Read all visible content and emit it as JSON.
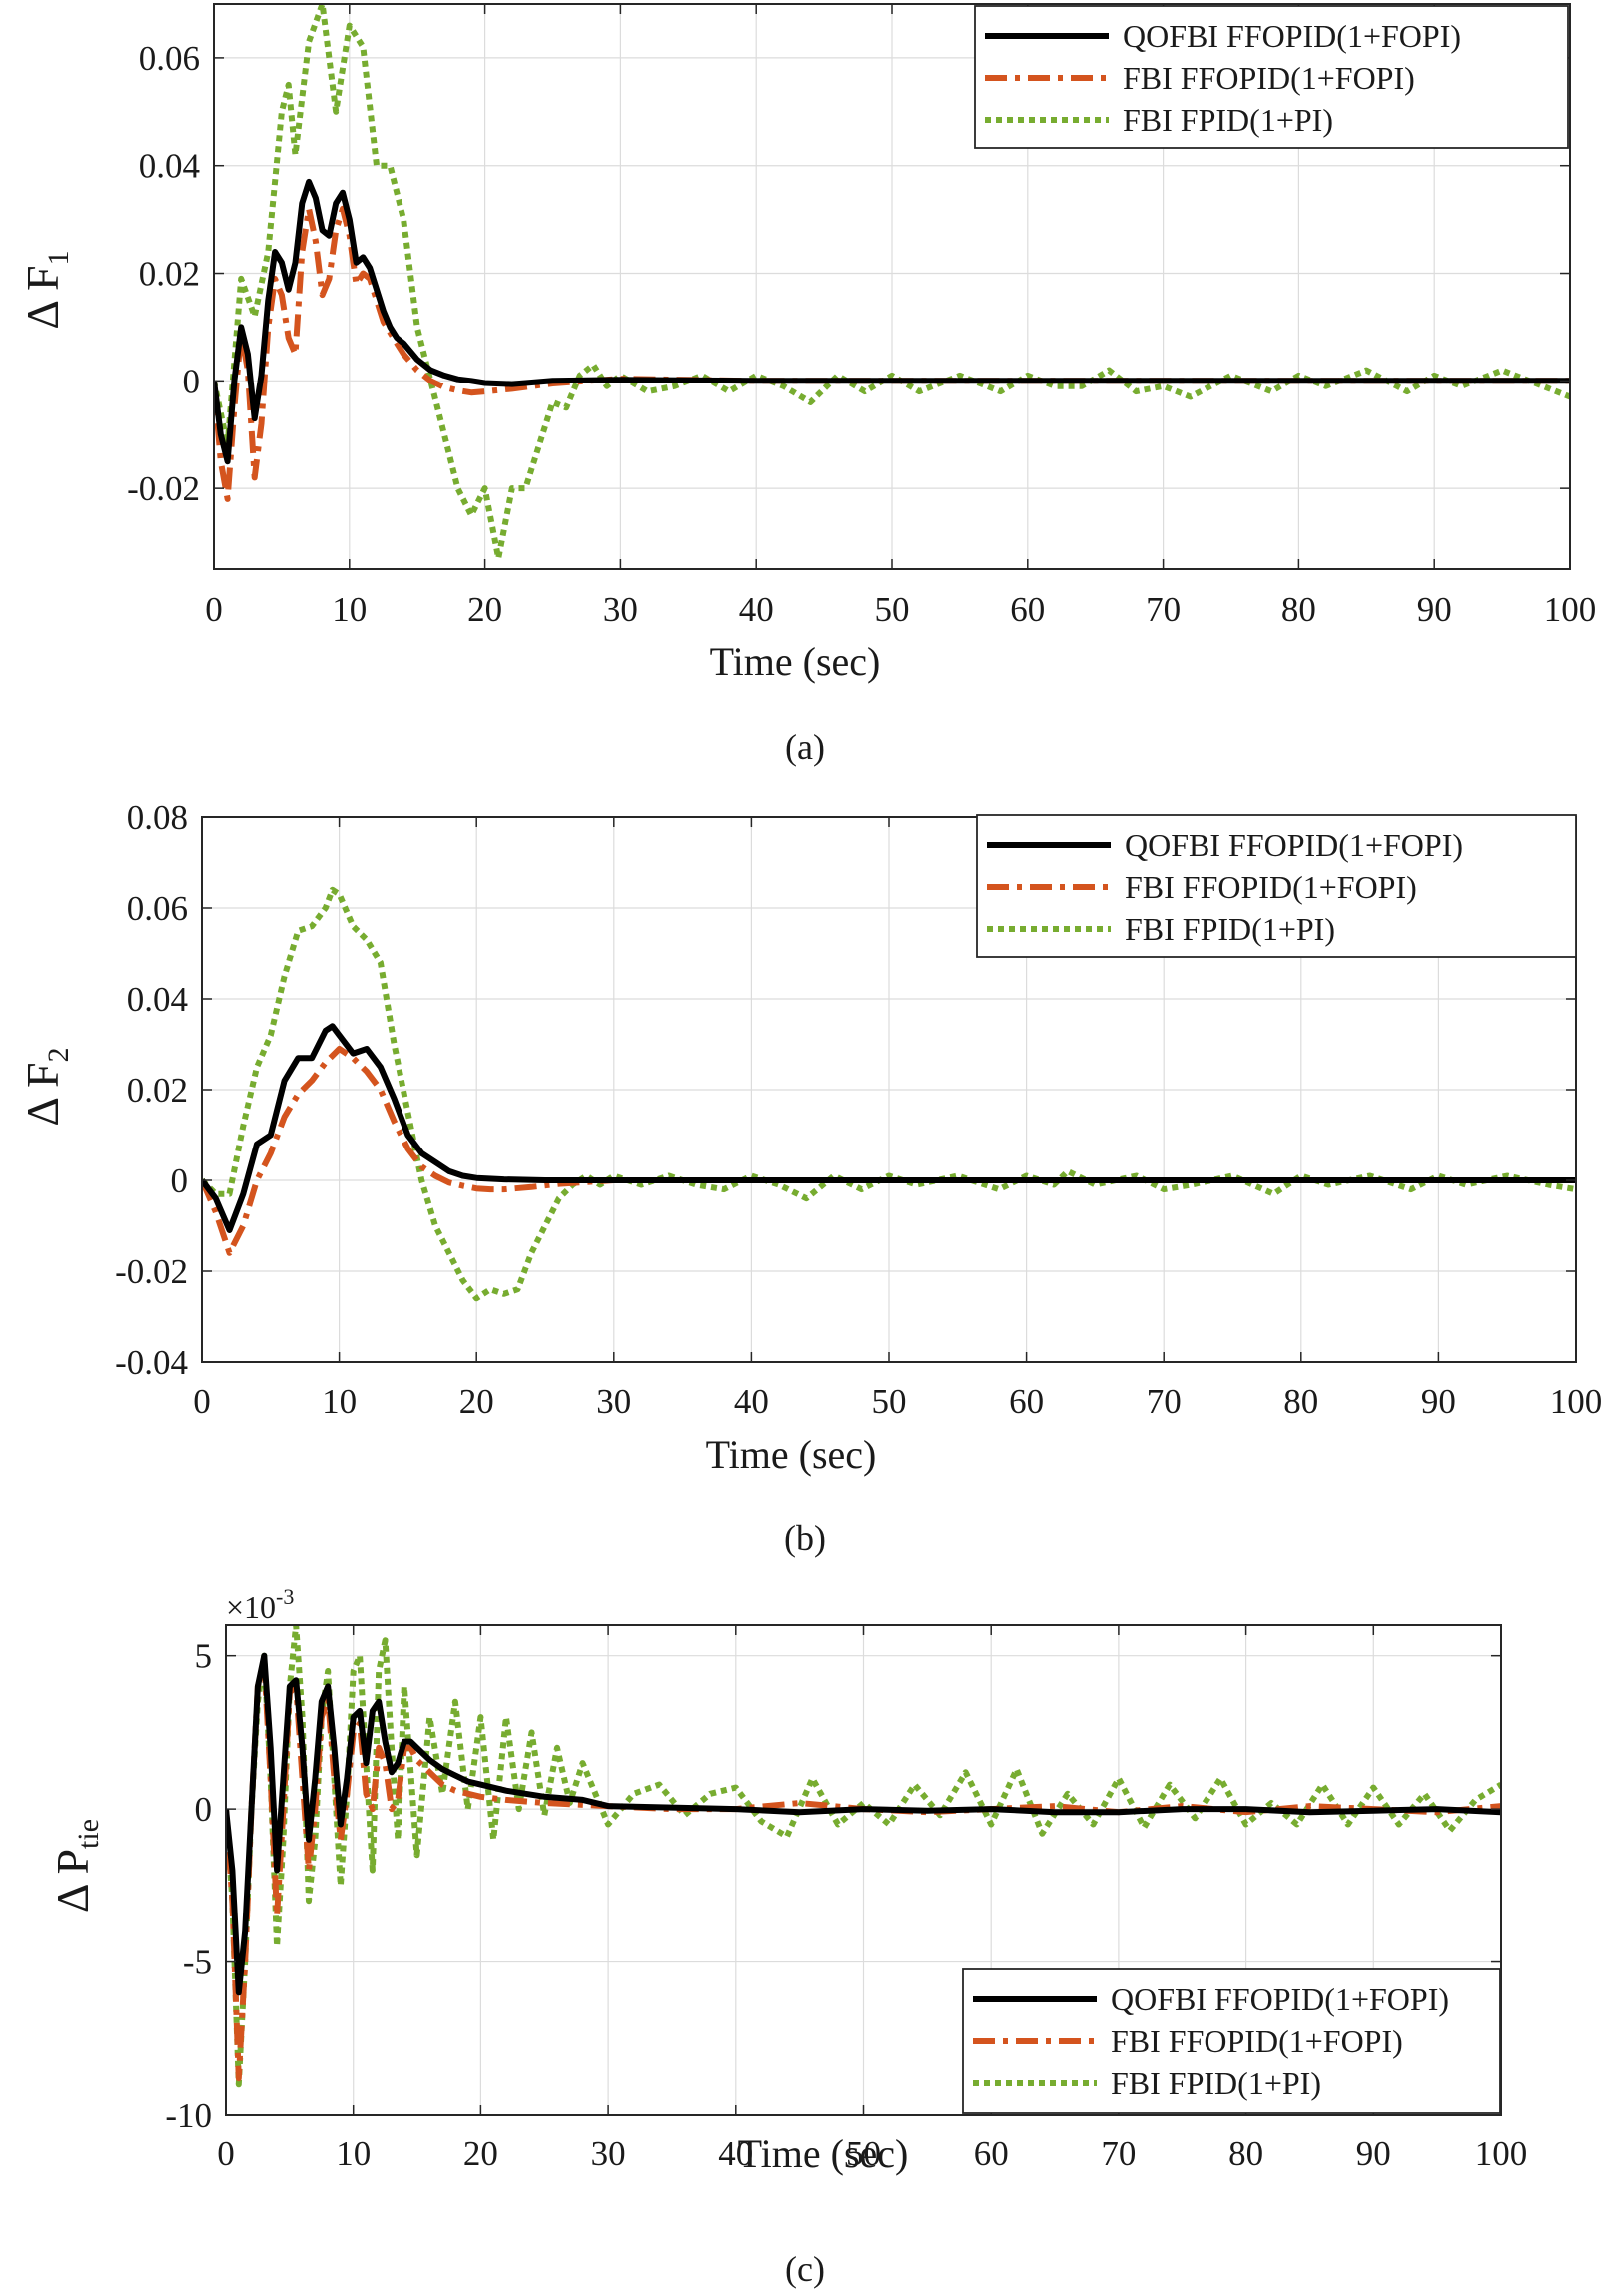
{
  "figure_panels": [
    "a",
    "b",
    "c"
  ],
  "colors": {
    "series1": "#000000",
    "series2": "#D4541E",
    "series3": "#77AC30",
    "grid": "#dcdcdc",
    "axis": "#262626"
  },
  "chart_data": [
    {
      "type": "line",
      "panel": "a",
      "caption": "(a)",
      "ylabel_main": "Δ F",
      "ylabel_sub": "1",
      "xlabel": "Time (sec)",
      "xlim": [
        0,
        100
      ],
      "ylim": [
        -0.035,
        0.07
      ],
      "xticks": [
        0,
        10,
        20,
        30,
        40,
        50,
        60,
        70,
        80,
        90,
        100
      ],
      "yticks": [
        -0.02,
        0,
        0.02,
        0.04,
        0.06
      ],
      "ytick_labels": [
        "-0.02",
        "0",
        "0.02",
        "0.04",
        "0.06"
      ],
      "grid": true,
      "legend_position": "top-right",
      "series": [
        {
          "name": "QOFBI FFOPID(1+FOPI)",
          "style": "solid",
          "x": [
            0,
            0.5,
            1,
            1.5,
            2,
            2.5,
            3,
            3.5,
            4,
            4.5,
            5,
            5.5,
            6,
            6.5,
            7,
            7.5,
            8,
            8.5,
            9,
            9.5,
            10,
            10.5,
            11,
            11.5,
            12,
            12.5,
            13,
            13.5,
            14,
            14.5,
            15,
            16,
            17,
            18,
            19,
            20,
            22,
            25,
            30,
            40,
            50,
            60,
            70,
            80,
            90,
            100
          ],
          "y": [
            0,
            -0.01,
            -0.015,
            0,
            0.01,
            0.005,
            -0.007,
            0.001,
            0.015,
            0.024,
            0.022,
            0.017,
            0.022,
            0.033,
            0.037,
            0.034,
            0.028,
            0.027,
            0.033,
            0.035,
            0.03,
            0.022,
            0.023,
            0.021,
            0.017,
            0.013,
            0.01,
            0.008,
            0.007,
            0.0055,
            0.004,
            0.002,
            0.001,
            0.0003,
            0,
            -0.0004,
            -0.0006,
            0,
            0.0002,
            0,
            0,
            0,
            0,
            0,
            0,
            0
          ]
        },
        {
          "name": "FBI FFOPID(1+FOPI)",
          "style": "dashdot",
          "x": [
            0,
            0.5,
            1,
            1.5,
            2,
            2.5,
            3,
            3.5,
            4,
            4.5,
            5,
            5.5,
            6,
            6.5,
            7,
            7.5,
            8,
            8.5,
            9,
            9.5,
            10,
            10.5,
            11,
            11.5,
            12,
            12.5,
            13,
            13.5,
            14,
            14.5,
            15,
            16,
            17,
            18,
            19,
            20,
            22,
            25,
            30,
            40,
            50,
            60,
            70,
            80,
            90,
            100
          ],
          "y": [
            0,
            -0.015,
            -0.022,
            -0.005,
            0.009,
            0.002,
            -0.018,
            -0.008,
            0.01,
            0.019,
            0.016,
            0.008,
            0.005,
            0.024,
            0.032,
            0.026,
            0.016,
            0.019,
            0.028,
            0.032,
            0.027,
            0.018,
            0.02,
            0.019,
            0.015,
            0.011,
            0.009,
            0.007,
            0.005,
            0.0035,
            0.002,
            0,
            -0.0012,
            -0.0018,
            -0.0022,
            -0.002,
            -0.0015,
            -0.0005,
            0.0004,
            0,
            0,
            0,
            0,
            0,
            0,
            0
          ]
        },
        {
          "name": "FBI FPID(1+PI)",
          "style": "dotted",
          "x": [
            0,
            1,
            2,
            3,
            4,
            5,
            5.5,
            6,
            7,
            8,
            9,
            10,
            10.5,
            11,
            12,
            13,
            14,
            15,
            16,
            17,
            18,
            19,
            20,
            21,
            22,
            23,
            24,
            25,
            26,
            27,
            28,
            29,
            30,
            32,
            34,
            36,
            38,
            40,
            42,
            44,
            46,
            48,
            50,
            52,
            55,
            58,
            60,
            62,
            64,
            66,
            68,
            70,
            72,
            75,
            78,
            80,
            82,
            85,
            88,
            90,
            92,
            95,
            98,
            100
          ],
          "y": [
            0,
            -0.012,
            0.019,
            0.012,
            0.024,
            0.05,
            0.055,
            0.042,
            0.063,
            0.07,
            0.05,
            0.066,
            0.064,
            0.062,
            0.04,
            0.04,
            0.03,
            0.01,
            0,
            -0.01,
            -0.02,
            -0.025,
            -0.02,
            -0.033,
            -0.02,
            -0.02,
            -0.012,
            -0.004,
            -0.005,
            0.001,
            0.003,
            -0.001,
            0.001,
            -0.002,
            -0.001,
            0.001,
            -0.002,
            0.001,
            -0.001,
            -0.004,
            0.001,
            -0.002,
            0.001,
            -0.002,
            0.001,
            -0.002,
            0.001,
            -0.001,
            -0.001,
            0.002,
            -0.002,
            -0.001,
            -0.003,
            0.001,
            -0.002,
            0.001,
            -0.001,
            0.002,
            -0.002,
            0.001,
            -0.001,
            0.002,
            -0.001,
            -0.003
          ]
        }
      ]
    },
    {
      "type": "line",
      "panel": "b",
      "caption": "(b)",
      "ylabel_main": "Δ F",
      "ylabel_sub": "2",
      "xlabel": "Time (sec)",
      "xlim": [
        0,
        100
      ],
      "ylim": [
        -0.04,
        0.08
      ],
      "xticks": [
        0,
        10,
        20,
        30,
        40,
        50,
        60,
        70,
        80,
        90,
        100
      ],
      "yticks": [
        -0.04,
        -0.02,
        0,
        0.02,
        0.04,
        0.06,
        0.08
      ],
      "ytick_labels": [
        "-0.04",
        "-0.02",
        "0",
        "0.02",
        "0.04",
        "0.06",
        "0.08"
      ],
      "grid": true,
      "legend_position": "top-right",
      "series": [
        {
          "name": "QOFBI FFOPID(1+FOPI)",
          "style": "solid",
          "x": [
            0,
            1,
            2,
            3,
            4,
            5,
            6,
            7,
            8,
            9,
            9.5,
            10,
            11,
            12,
            13,
            14,
            15,
            16,
            17,
            18,
            19,
            20,
            22,
            25,
            30,
            40,
            50,
            60,
            70,
            80,
            90,
            100
          ],
          "y": [
            0,
            -0.004,
            -0.011,
            -0.003,
            0.008,
            0.01,
            0.022,
            0.027,
            0.027,
            0.033,
            0.034,
            0.032,
            0.028,
            0.029,
            0.025,
            0.018,
            0.01,
            0.006,
            0.004,
            0.002,
            0.001,
            0.0005,
            0.0002,
            0,
            0,
            0,
            0,
            0,
            0,
            0,
            0,
            0
          ]
        },
        {
          "name": "FBI FFOPID(1+FOPI)",
          "style": "dashdot",
          "x": [
            0,
            1,
            2,
            3,
            4,
            5,
            6,
            7,
            8,
            9,
            10,
            11,
            12,
            13,
            14,
            15,
            16,
            17,
            18,
            19,
            20,
            21,
            22,
            24,
            26,
            30,
            40,
            50,
            60,
            70,
            80,
            90,
            100
          ],
          "y": [
            0,
            -0.007,
            -0.016,
            -0.01,
            0,
            0.006,
            0.014,
            0.019,
            0.022,
            0.026,
            0.029,
            0.027,
            0.024,
            0.02,
            0.013,
            0.007,
            0.003,
            0.001,
            -0.0005,
            -0.0012,
            -0.0018,
            -0.002,
            -0.002,
            -0.0015,
            -0.0008,
            0,
            0,
            0,
            0,
            0,
            0,
            0,
            0
          ]
        },
        {
          "name": "FBI FPID(1+PI)",
          "style": "dotted",
          "x": [
            0,
            1,
            2,
            3,
            4,
            5,
            6,
            7,
            8,
            9,
            9.5,
            10,
            11,
            12,
            13,
            14,
            15,
            16,
            17,
            18,
            19,
            20,
            21,
            22,
            23,
            24,
            25,
            26,
            27,
            28,
            29,
            30,
            32,
            34,
            36,
            38,
            40,
            42,
            44,
            46,
            48,
            50,
            52,
            55,
            58,
            60,
            62,
            63,
            65,
            68,
            70,
            72,
            75,
            78,
            80,
            82,
            85,
            88,
            90,
            92,
            95,
            98,
            100
          ],
          "y": [
            0,
            -0.003,
            -0.003,
            0.012,
            0.025,
            0.032,
            0.045,
            0.055,
            0.056,
            0.06,
            0.064,
            0.063,
            0.056,
            0.053,
            0.048,
            0.03,
            0.015,
            0,
            -0.01,
            -0.016,
            -0.022,
            -0.026,
            -0.024,
            -0.025,
            -0.024,
            -0.016,
            -0.01,
            -0.004,
            -0.001,
            0.001,
            -0.001,
            0.001,
            -0.001,
            0.001,
            -0.001,
            -0.002,
            0.001,
            -0.001,
            -0.004,
            0.001,
            -0.002,
            0.001,
            -0.001,
            0.001,
            -0.002,
            0.001,
            -0.001,
            0.002,
            -0.001,
            0.001,
            -0.002,
            -0.001,
            0.001,
            -0.003,
            0.001,
            -0.001,
            0.001,
            -0.002,
            0.001,
            -0.001,
            0.001,
            -0.001,
            -0.002
          ]
        }
      ]
    },
    {
      "type": "line",
      "panel": "c",
      "caption": "(c)",
      "ylabel_main": "Δ P",
      "ylabel_sub": "tie",
      "xlabel": "Time (sec)",
      "multiplier_base": "×10",
      "multiplier_exp": "-3",
      "xlim": [
        0,
        100
      ],
      "ylim": [
        -10,
        6
      ],
      "xticks": [
        0,
        10,
        20,
        30,
        40,
        50,
        60,
        70,
        80,
        90,
        100
      ],
      "yticks": [
        -10,
        -5,
        0,
        5
      ],
      "ytick_labels": [
        "-10",
        "-5",
        "0",
        "5"
      ],
      "grid": true,
      "legend_position": "bottom-right",
      "series": [
        {
          "name": "QOFBI FFOPID(1+FOPI)",
          "style": "solid",
          "x": [
            0,
            0.5,
            1,
            1.5,
            2,
            2.5,
            3,
            3.5,
            4,
            4.5,
            5,
            5.5,
            6,
            6.5,
            7,
            7.5,
            8,
            8.5,
            9,
            9.5,
            10,
            10.5,
            11,
            11.5,
            12,
            12.5,
            13,
            13.5,
            14,
            14.5,
            15,
            16,
            17,
            18,
            19,
            20,
            22,
            25,
            28,
            30,
            35,
            40,
            45,
            50,
            55,
            60,
            65,
            70,
            75,
            80,
            85,
            90,
            95,
            100
          ],
          "y": [
            0,
            -2,
            -6,
            -4,
            0,
            4,
            5,
            2,
            -2,
            1,
            4,
            4.2,
            2,
            -1,
            1,
            3.5,
            4,
            2,
            -0.5,
            1,
            3,
            3.2,
            1.5,
            3.2,
            3.5,
            2.2,
            1.2,
            1.5,
            2.2,
            2.2,
            2,
            1.6,
            1.3,
            1.1,
            0.9,
            0.8,
            0.6,
            0.4,
            0.3,
            0.1,
            0.05,
            0,
            -0.1,
            0,
            -0.05,
            0,
            -0.1,
            -0.1,
            0,
            0,
            -0.1,
            -0.05,
            0,
            -0.1
          ]
        },
        {
          "name": "FBI FFOPID(1+FOPI)",
          "style": "dashdot",
          "x": [
            0,
            0.5,
            1,
            1.5,
            2,
            2.5,
            3,
            3.5,
            4,
            4.5,
            5,
            5.5,
            6,
            6.5,
            7,
            7.5,
            8,
            8.5,
            9,
            9.5,
            10,
            10.5,
            11,
            11.5,
            12,
            12.5,
            13,
            13.5,
            14,
            14.5,
            15,
            16,
            17,
            18,
            20,
            22,
            25,
            30,
            35,
            40,
            45,
            50,
            55,
            60,
            65,
            70,
            75,
            80,
            85,
            90,
            95,
            100
          ],
          "y": [
            0,
            -3,
            -8.8,
            -5,
            0,
            4,
            4.8,
            1,
            -3.5,
            0,
            3.8,
            4,
            1,
            -2,
            0,
            3,
            3.6,
            1,
            -1,
            0.5,
            2.5,
            2.8,
            0.5,
            0,
            2,
            1.5,
            0,
            0.3,
            2,
            2,
            1.6,
            1.2,
            0.8,
            0.6,
            0.4,
            0.3,
            0.2,
            0.1,
            0,
            0,
            0.2,
            0,
            -0.1,
            0,
            0.1,
            -0.1,
            0.1,
            -0.1,
            0.1,
            0,
            -0.1,
            0.1
          ]
        },
        {
          "name": "FBI FPID(1+PI)",
          "style": "dotted",
          "x": [
            0,
            0.5,
            1,
            1.5,
            2,
            2.5,
            3,
            3.5,
            4,
            4.5,
            5,
            5.5,
            6,
            6.5,
            7,
            7.5,
            8,
            8.5,
            9,
            9.5,
            10,
            10.5,
            11,
            11.5,
            12,
            12.5,
            13,
            13.5,
            14,
            15,
            16,
            17,
            18,
            19,
            20,
            21,
            22,
            23,
            24,
            25,
            26,
            27,
            28,
            30,
            32,
            34,
            36,
            38,
            40,
            42,
            44,
            46,
            48,
            50,
            52,
            54,
            56,
            58,
            60,
            62,
            64,
            66,
            68,
            70,
            72,
            74,
            76,
            78,
            80,
            82,
            84,
            86,
            88,
            90,
            92,
            94,
            96,
            98,
            100
          ],
          "y": [
            0,
            -3,
            -9,
            -5,
            0,
            3.5,
            5,
            1,
            -4.5,
            -1,
            4,
            6,
            3,
            -3,
            -1,
            3,
            4.5,
            1,
            -2.5,
            0.5,
            4.5,
            5,
            1.5,
            -2,
            4.5,
            5.5,
            2,
            -1,
            4,
            -1.5,
            3,
            0.5,
            3.5,
            0,
            3,
            -1,
            3,
            0,
            2.5,
            -0.2,
            2,
            0.2,
            1.5,
            -0.5,
            0.5,
            0.8,
            -0.2,
            0.5,
            0.7,
            -0.4,
            -0.9,
            1,
            -0.5,
            0.2,
            -0.5,
            0.8,
            -0.2,
            1.2,
            -0.5,
            1.3,
            -0.8,
            0.5,
            -0.5,
            1,
            -0.6,
            0.8,
            -0.3,
            1,
            -0.5,
            0.2,
            -0.5,
            0.8,
            -0.5,
            0.7,
            -0.5,
            0.5,
            -0.7,
            0.3,
            0.8
          ]
        }
      ]
    }
  ]
}
